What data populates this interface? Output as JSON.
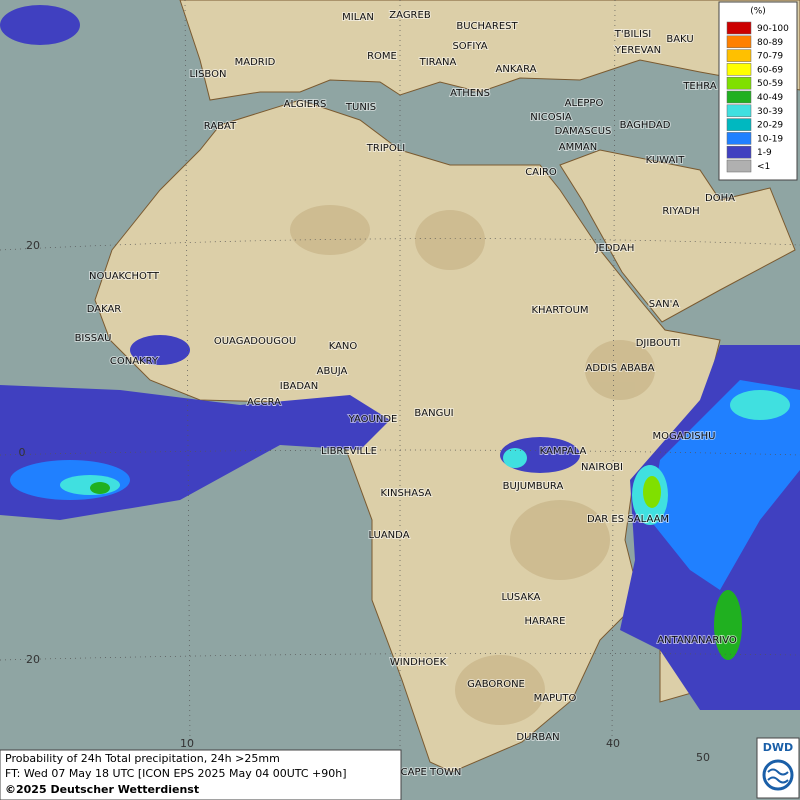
{
  "legend": {
    "title": "(%)",
    "items": [
      {
        "label": "90-100",
        "color": "#cc0000"
      },
      {
        "label": "80-89",
        "color": "#ff8000"
      },
      {
        "label": "70-79",
        "color": "#ffc000"
      },
      {
        "label": "60-69",
        "color": "#ffff00"
      },
      {
        "label": "50-59",
        "color": "#80e000"
      },
      {
        "label": "40-49",
        "color": "#20b020"
      },
      {
        "label": "30-39",
        "color": "#40e0e0"
      },
      {
        "label": "20-29",
        "color": "#00b8c0"
      },
      {
        "label": "10-19",
        "color": "#2080ff"
      },
      {
        "label": "1-9",
        "color": "#4040c0"
      },
      {
        "label": "<1",
        "color": "#b0b0b0"
      }
    ]
  },
  "cities": [
    "MILAN",
    "ZAGREB",
    "BUCHAREST",
    "SOFIYA",
    "ROME",
    "TIRANA",
    "ANKARA",
    "T'BILISI",
    "BAKU",
    "YEREVAN",
    "MADRID",
    "LISBON",
    "TEHRA",
    "ALGIERS",
    "TUNIS",
    "ATHENS",
    "ALEPPO",
    "NICOSIA",
    "BAGHDAD",
    "RABAT",
    "DAMASCUS",
    "AMMAN",
    "TRIPOLI",
    "KUWAIT",
    "CAIRO",
    "DOHA",
    "RIYADH",
    "JEDDAH",
    "NOUAKCHOTT",
    "DAKAR",
    "SAN'A",
    "KHARTOUM",
    "BISSAU",
    "DJIBOUTI",
    "OUAGADOUGOU",
    "KANO",
    "CONAKRY",
    "ABUJA",
    "ADDIS ABABA",
    "IBADAN",
    "ACCRA",
    "YAOUNDE",
    "BANGUI",
    "MOGADISHU",
    "LIBREVILLE",
    "KAMPALA",
    "NAIROBI",
    "BUJUMBURA",
    "KINSHASA",
    "DAR ES SALAAM",
    "LUANDA",
    "LUSAKA",
    "HARARE",
    "ANTANANARIVO",
    "WINDHOEK",
    "GABORONE",
    "MAPUTO",
    "DURBAN",
    "CAPE TOWN"
  ],
  "grid_labels": [
    "20",
    "0",
    "20",
    "10",
    "40",
    "50"
  ],
  "footer": {
    "lines": [
      "Probability of 24h Total precipitation, 24h >25mm",
      "FT: Wed 07 May 18 UTC [ICON EPS 2025 May 04 00UTC +90h]",
      "©2025 Deutscher Wetterdienst"
    ]
  },
  "logo": "DWD"
}
